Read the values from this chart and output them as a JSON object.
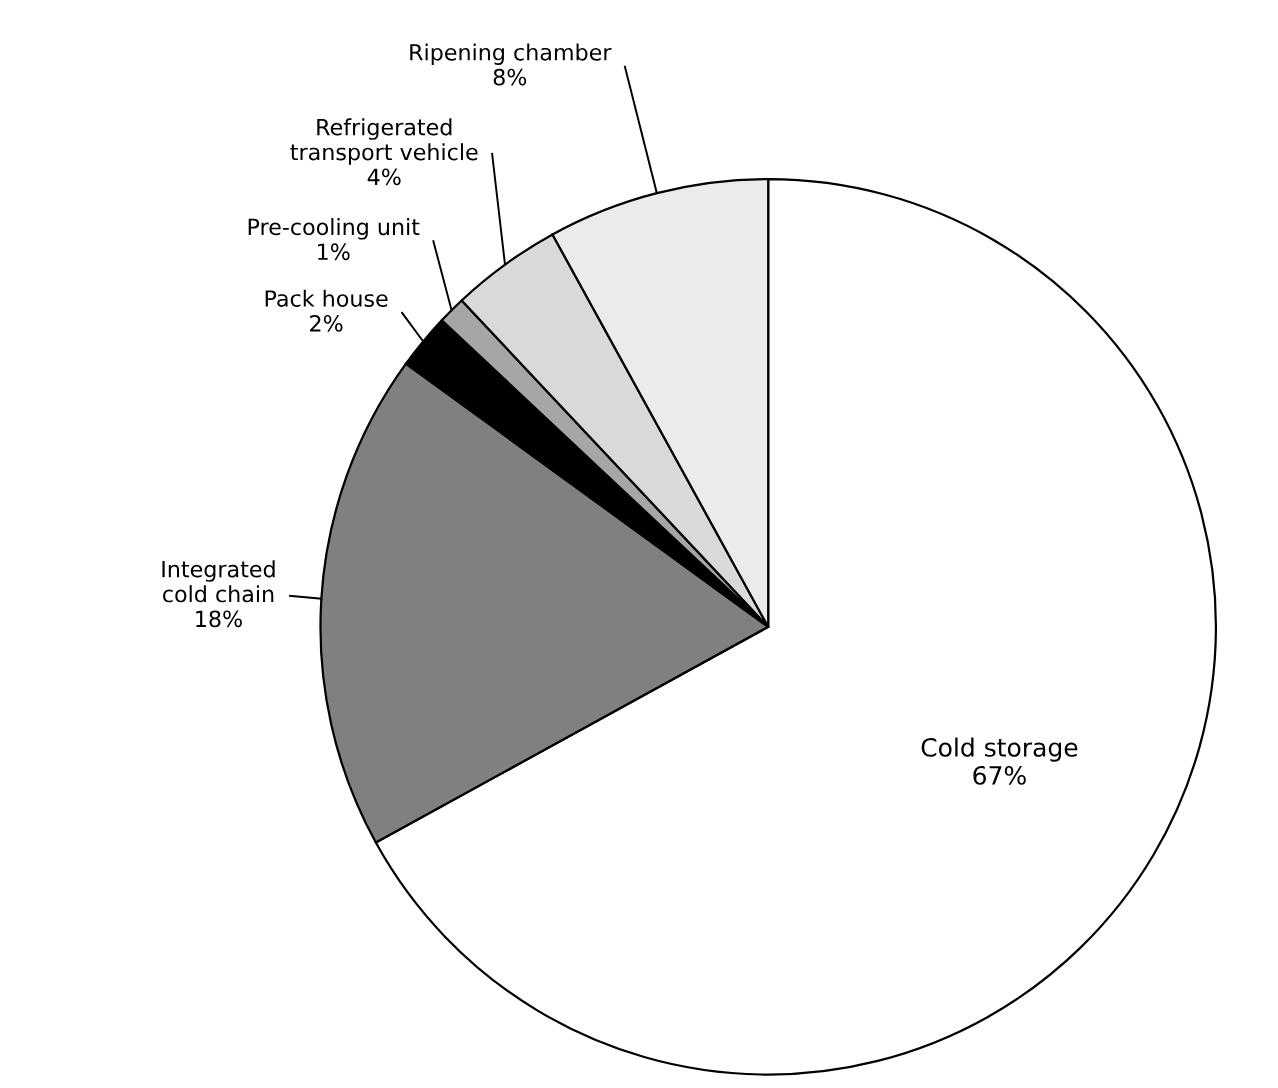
{
  "chart_data": {
    "type": "pie",
    "categories": [
      "Cold storage",
      "Integrated\ncold chain",
      "Pack house",
      "Pre-cooling unit",
      "Refrigerated\ntransport vehicle",
      "Ripening chamber"
    ],
    "values": [
      67,
      18,
      2,
      1,
      4,
      8
    ],
    "value_labels": [
      "67%",
      "18%",
      "2%",
      "1%",
      "4%",
      "8%"
    ],
    "colors": [
      "#ffffff",
      "#808080",
      "#000000",
      "#a6a6a6",
      "#d9d9d9",
      "#ebebeb"
    ],
    "legend": false
  }
}
